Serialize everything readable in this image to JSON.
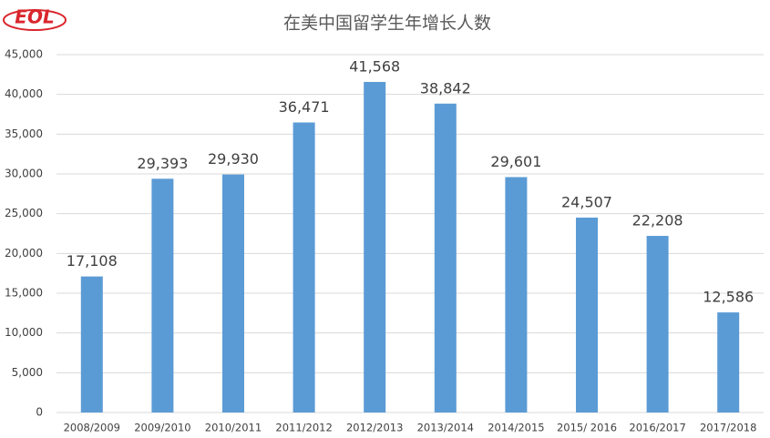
{
  "logo": "EOL",
  "chart_data": {
    "type": "bar",
    "title": "在美中国留学生年增长人数",
    "categories": [
      "2008/2009",
      "2009/2010",
      "2010/2011",
      "2011/2012",
      "2012/2013",
      "2013/2014",
      "2014/2015",
      "2015/ 2016",
      "2016/2017",
      "2017/2018"
    ],
    "values": [
      17108,
      29393,
      29930,
      36471,
      41568,
      38842,
      29601,
      24507,
      22208,
      12586
    ],
    "value_labels": [
      "17,108",
      "29,393",
      "29,930",
      "36,471",
      "41,568",
      "38,842",
      "29,601",
      "24,507",
      "22,208",
      "12,586"
    ],
    "color": "#5b9bd5",
    "ylim": [
      0,
      45000
    ],
    "yticks": [
      0,
      {
        "value": 5000,
        "label": "5,000"
      },
      {
        "value": 10000,
        "label": "10,000"
      },
      {
        "value": 15000,
        "label": "15,000"
      },
      {
        "value": 20000,
        "label": "20,000"
      },
      {
        "value": 25000,
        "label": "25,000"
      },
      {
        "value": 30000,
        "label": "30,000"
      },
      {
        "value": 35000,
        "label": "35,000"
      },
      {
        "value": 40000,
        "label": "40,000"
      },
      {
        "value": 45000,
        "label": "45,000"
      }
    ],
    "grid": true
  }
}
